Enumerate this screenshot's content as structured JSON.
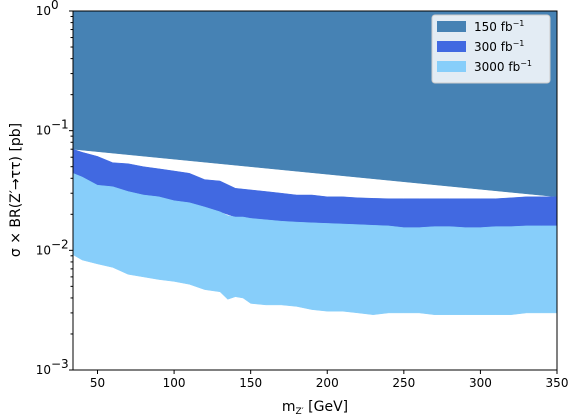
{
  "chart_data": {
    "type": "area",
    "xlabel": "m_{Z′} [GeV]",
    "ylabel": "σ × BR(Z′→ττ) [pb]",
    "xlim": [
      34,
      350
    ],
    "ylim": [
      0.001,
      1
    ],
    "yscale": "log",
    "grid": false,
    "legend_position": "top-right",
    "x_ticks": [
      50,
      100,
      150,
      200,
      250,
      300,
      350
    ],
    "x_tick_labels": [
      "50",
      "100",
      "150",
      "200",
      "250",
      "300",
      "350"
    ],
    "y_ticks": [
      0.001,
      0.01,
      0.1,
      1
    ],
    "y_tick_labels": [
      "10",
      "10",
      "10",
      "10"
    ],
    "y_tick_exponents": [
      "−3",
      "−2",
      "−1",
      "0"
    ],
    "series": [
      {
        "name": "150 fb",
        "name_superscript": "−1",
        "color": "#4682b4",
        "x": [
          34,
          350
        ],
        "lower": [
          0.07,
          0.028
        ],
        "upper": [
          1,
          1
        ]
      },
      {
        "name": "300 fb",
        "name_superscript": "−1",
        "color": "#4169e1",
        "x": [
          34,
          40,
          50,
          60,
          70,
          80,
          90,
          100,
          110,
          120,
          130,
          140,
          150,
          160,
          170,
          180,
          190,
          200,
          210,
          220,
          230,
          240,
          250,
          260,
          270,
          280,
          290,
          300,
          310,
          320,
          330,
          340,
          350
        ],
        "lower": [
          0.044,
          0.041,
          0.035,
          0.034,
          0.031,
          0.029,
          0.028,
          0.026,
          0.025,
          0.023,
          0.021,
          0.019,
          0.0185,
          0.018,
          0.0175,
          0.0172,
          0.017,
          0.0168,
          0.0166,
          0.0164,
          0.0162,
          0.016,
          0.0155,
          0.0155,
          0.0158,
          0.0158,
          0.0155,
          0.0155,
          0.0158,
          0.0158,
          0.016,
          0.016,
          0.016
        ],
        "upper": [
          0.07,
          0.066,
          0.061,
          0.054,
          0.053,
          0.05,
          0.048,
          0.046,
          0.044,
          0.039,
          0.038,
          0.033,
          0.032,
          0.031,
          0.03,
          0.029,
          0.029,
          0.028,
          0.028,
          0.0275,
          0.0272,
          0.027,
          0.027,
          0.027,
          0.027,
          0.027,
          0.027,
          0.027,
          0.027,
          0.0275,
          0.028,
          0.028,
          0.028
        ]
      },
      {
        "name": "3000 fb",
        "name_superscript": "−1",
        "color": "#87cefa",
        "x": [
          34,
          40,
          50,
          60,
          70,
          80,
          90,
          100,
          110,
          120,
          130,
          135,
          140,
          145,
          150,
          160,
          170,
          180,
          190,
          200,
          210,
          220,
          230,
          240,
          250,
          260,
          270,
          280,
          290,
          300,
          310,
          320,
          330,
          340,
          350
        ],
        "lower": [
          0.0092,
          0.0083,
          0.0077,
          0.0072,
          0.0063,
          0.006,
          0.0057,
          0.0055,
          0.0052,
          0.0047,
          0.0045,
          0.0039,
          0.0041,
          0.004,
          0.0036,
          0.0035,
          0.0035,
          0.0034,
          0.0032,
          0.0031,
          0.0031,
          0.003,
          0.0029,
          0.003,
          0.003,
          0.003,
          0.0029,
          0.0029,
          0.0029,
          0.0029,
          0.0029,
          0.0029,
          0.003,
          0.003,
          0.003
        ],
        "upper": [
          0.044,
          0.041,
          0.035,
          0.034,
          0.031,
          0.029,
          0.028,
          0.026,
          0.025,
          0.023,
          0.021,
          0.0195,
          0.019,
          0.019,
          0.0185,
          0.018,
          0.0175,
          0.0172,
          0.017,
          0.0168,
          0.0166,
          0.0164,
          0.0162,
          0.016,
          0.0155,
          0.0155,
          0.0158,
          0.0158,
          0.0155,
          0.0155,
          0.0158,
          0.0158,
          0.016,
          0.016,
          0.016
        ]
      }
    ]
  }
}
